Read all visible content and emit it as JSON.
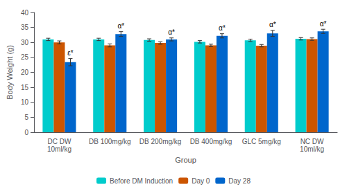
{
  "chart_data": {
    "type": "bar",
    "categories": [
      "DC DW\n10ml/kg",
      "DB 100mg/kg",
      "DB 200mg/kg",
      "DB 400mg/kg",
      "GLC 5mg/kg",
      "NC DW\n10ml/kg"
    ],
    "series": [
      {
        "name": "Before DM Induction",
        "color": "#00CCCC",
        "values": [
          31.0,
          31.0,
          30.8,
          30.2,
          30.7,
          31.2
        ],
        "errors": [
          0.4,
          0.4,
          0.4,
          0.4,
          0.4,
          0.4
        ]
      },
      {
        "name": "Day 0",
        "color": "#CC5500",
        "values": [
          30.0,
          29.0,
          29.8,
          29.0,
          28.9,
          31.1
        ],
        "errors": [
          0.5,
          0.5,
          0.4,
          0.4,
          0.4,
          0.4
        ]
      },
      {
        "name": "Day 28",
        "color": "#0066CC",
        "values": [
          23.4,
          32.8,
          31.0,
          32.2,
          33.0,
          33.7
        ],
        "errors": [
          1.2,
          0.8,
          0.5,
          0.7,
          1.0,
          0.7
        ],
        "annotations": [
          "ε*",
          "α*",
          "α*",
          "α*",
          "α*",
          "α*"
        ]
      }
    ],
    "xlabel": "Group",
    "ylabel": "Body Weight (g)",
    "ylim": [
      0,
      40
    ],
    "yticks": [
      0,
      5,
      10,
      15,
      20,
      25,
      30,
      35,
      40
    ],
    "grid": false,
    "legend": "bottom"
  }
}
